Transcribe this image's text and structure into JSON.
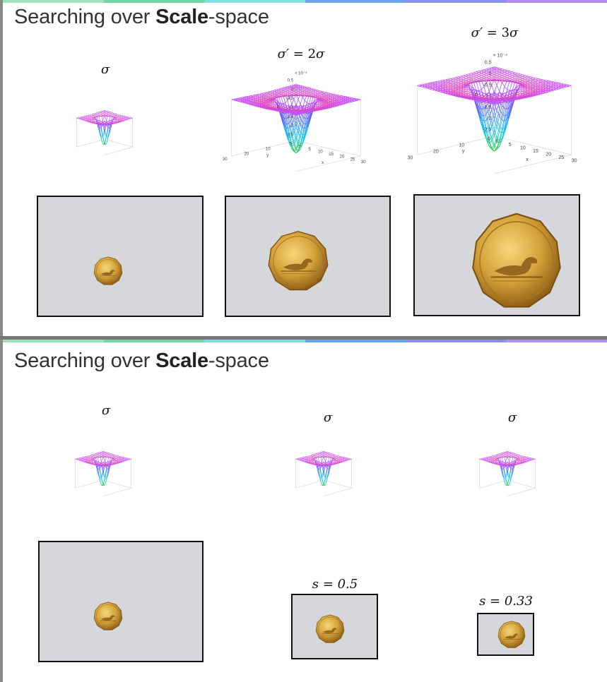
{
  "slide1": {
    "title_prefix": "Searching over ",
    "title_bold": "Scale",
    "title_suffix": "-space",
    "labels": {
      "left": "σ",
      "middle_var": "σ′",
      "middle_eq": " = 2",
      "middle_sym": "σ",
      "right_var": "σ′",
      "right_eq": " = 3",
      "right_sym": "σ"
    },
    "plot": {
      "exponent": "× 10⁻⁴",
      "z_ticks": [
        "0.5",
        "0",
        "-0.5",
        "-1",
        "-1.5",
        "-2",
        "-2.5"
      ],
      "x_ticks": [
        "0",
        "5",
        "10",
        "15",
        "20",
        "25",
        "30"
      ],
      "y_ticks": [
        "30",
        "20",
        "10",
        "0"
      ],
      "x_label": "x",
      "y_label": "y",
      "z_label": "z"
    }
  },
  "slide2": {
    "title_prefix": "Searching over ",
    "title_bold": "Scale",
    "title_suffix": "-space",
    "labels": {
      "left": "σ",
      "middle": "σ",
      "right": "σ",
      "scale_middle": "s = 0.5",
      "scale_right": "s = 0.33"
    }
  },
  "colors": {
    "panel_bg": "#d6d7db",
    "border": "#111111",
    "mesh_top": "#ff3366",
    "mesh_bottom": "#33cc33",
    "coin_gold": "#c9962a"
  },
  "icons": [
    "loonie-coin-image",
    "mexican-hat-surface-plot"
  ]
}
